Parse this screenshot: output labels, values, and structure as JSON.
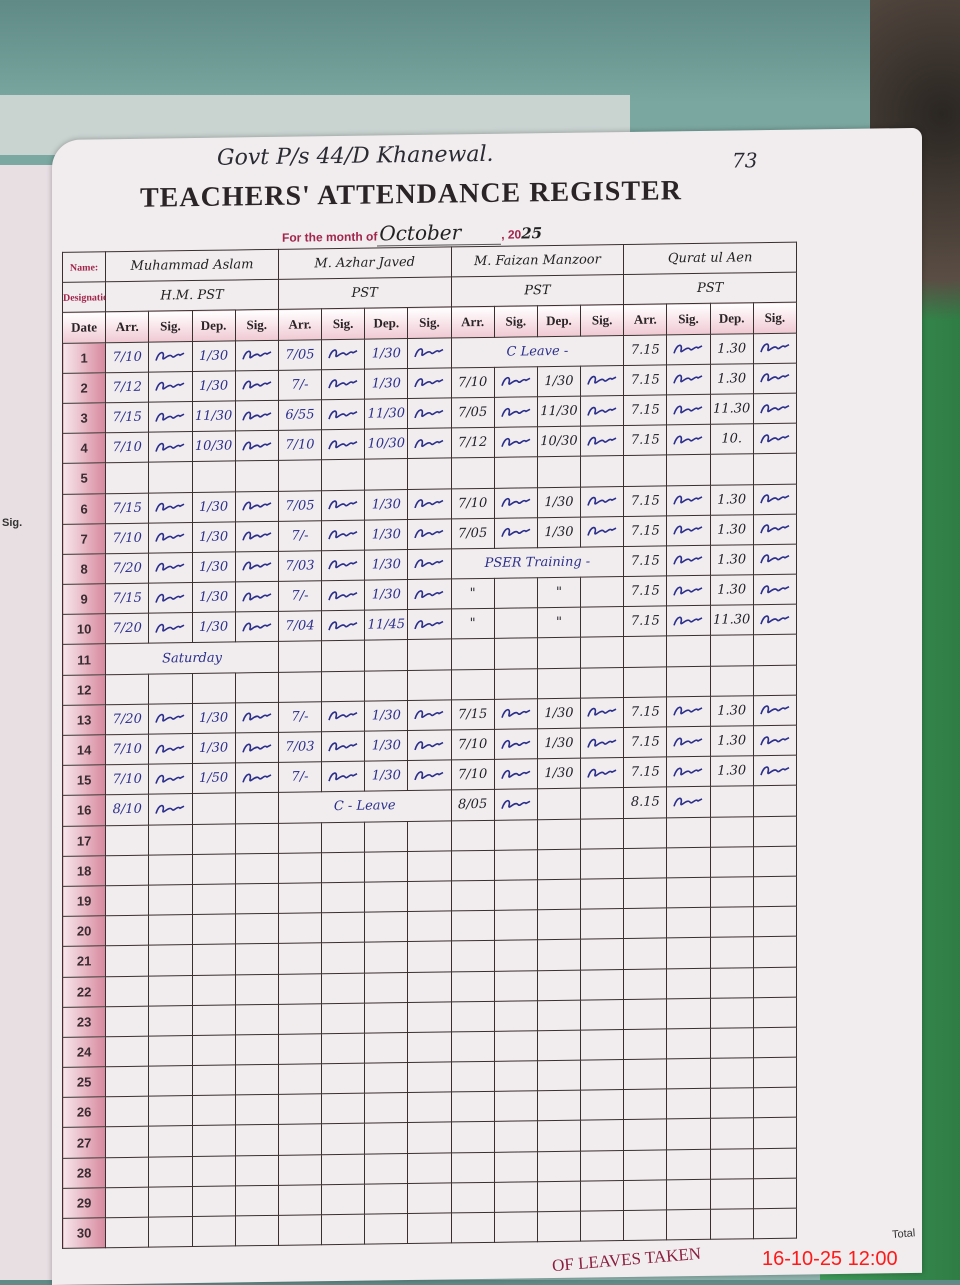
{
  "header": {
    "school": "Govt P/s 44/D Khanewal.",
    "page_number": "73",
    "title": "TEACHERS' ATTENDANCE REGISTER",
    "month_label": "For the month of",
    "month_value": "October",
    "year_prefix": ", 20",
    "year_value": "25"
  },
  "labels": {
    "name": "Name:",
    "designation": "Designation:",
    "date": "Date",
    "arr": "Arr.",
    "sig": "Sig.",
    "dep": "Dep."
  },
  "colors": {
    "accent": "#b2304f",
    "ink_blue": "#2b2f8a",
    "stamp": "#ff1a1a"
  },
  "teachers": [
    {
      "name": "Muhammad Aslam",
      "designation": "H.M. PST",
      "ink": "blue",
      "rows": [
        [
          "7/10",
          true,
          "1/30",
          true
        ],
        [
          "7/12",
          true,
          "1/30",
          true
        ],
        [
          "7/15",
          true,
          "11/30",
          true
        ],
        [
          "7/10",
          true,
          "10/30",
          true
        ],
        null,
        [
          "7/15",
          true,
          "1/30",
          true
        ],
        [
          "7/10",
          true,
          "1/30",
          true
        ],
        [
          "7/20",
          true,
          "1/30",
          true
        ],
        [
          "7/15",
          true,
          "1/30",
          true
        ],
        [
          "7/20",
          true,
          "1/30",
          true
        ],
        "Saturday",
        null,
        [
          "7/20",
          true,
          "1/30",
          true
        ],
        [
          "7/10",
          true,
          "1/30",
          true
        ],
        [
          "7/10",
          true,
          "1/50",
          true
        ],
        [
          "8/10",
          true,
          "",
          false
        ],
        null,
        null,
        null,
        null,
        null,
        null,
        null,
        null,
        null,
        null,
        null,
        null,
        null,
        null
      ]
    },
    {
      "name": "M. Azhar Javed",
      "designation": "PST",
      "ink": "blue",
      "rows": [
        [
          "7/05",
          true,
          "1/30",
          true
        ],
        [
          "7/-",
          true,
          "1/30",
          true
        ],
        [
          "6/55",
          true,
          "11/30",
          true
        ],
        [
          "7/10",
          true,
          "10/30",
          true
        ],
        null,
        [
          "7/05",
          true,
          "1/30",
          true
        ],
        [
          "7/-",
          true,
          "1/30",
          true
        ],
        [
          "7/03",
          true,
          "1/30",
          true
        ],
        [
          "7/-",
          true,
          "1/30",
          true
        ],
        [
          "7/04",
          true,
          "11/45",
          true
        ],
        null,
        null,
        [
          "7/-",
          true,
          "1/30",
          true
        ],
        [
          "7/03",
          true,
          "1/30",
          true
        ],
        [
          "7/-",
          true,
          "1/30",
          true
        ],
        "C - Leave",
        null,
        null,
        null,
        null,
        null,
        null,
        null,
        null,
        null,
        null,
        null,
        null,
        null,
        null
      ]
    },
    {
      "name": "M. Faizan Manzoor",
      "designation": "PST",
      "ink": "black",
      "rows": [
        "C Leave -",
        [
          "7/10",
          true,
          "1/30",
          true
        ],
        [
          "7/05",
          true,
          "11/30",
          true
        ],
        [
          "7/12",
          true,
          "10/30",
          true
        ],
        null,
        [
          "7/10",
          true,
          "1/30",
          true
        ],
        [
          "7/05",
          true,
          "1/30",
          true
        ],
        "PSER Training -",
        [
          "\"",
          false,
          "\"",
          false
        ],
        [
          "\"",
          false,
          "\"",
          false
        ],
        null,
        null,
        [
          "7/15",
          true,
          "1/30",
          true
        ],
        [
          "7/10",
          true,
          "1/30",
          true
        ],
        [
          "7/10",
          true,
          "1/30",
          true
        ],
        [
          "8/05",
          true,
          "",
          false
        ],
        null,
        null,
        null,
        null,
        null,
        null,
        null,
        null,
        null,
        null,
        null,
        null,
        null,
        null
      ]
    },
    {
      "name": "Qurat ul Aen",
      "designation": "PST",
      "ink": "black",
      "rows": [
        [
          "7.15",
          true,
          "1.30",
          true
        ],
        [
          "7.15",
          true,
          "1.30",
          true
        ],
        [
          "7.15",
          true,
          "11.30",
          true
        ],
        [
          "7.15",
          true,
          "10.",
          true
        ],
        null,
        [
          "7.15",
          true,
          "1.30",
          true
        ],
        [
          "7.15",
          true,
          "1.30",
          true
        ],
        [
          "7.15",
          true,
          "1.30",
          true
        ],
        [
          "7.15",
          true,
          "1.30",
          true
        ],
        [
          "7.15",
          true,
          "11.30",
          true
        ],
        null,
        null,
        [
          "7.15",
          true,
          "1.30",
          true
        ],
        [
          "7.15",
          true,
          "1.30",
          true
        ],
        [
          "7.15",
          true,
          "1.30",
          true
        ],
        [
          "8.15",
          true,
          "",
          false
        ],
        null,
        null,
        null,
        null,
        null,
        null,
        null,
        null,
        null,
        null,
        null,
        null,
        null,
        null
      ]
    }
  ],
  "footer": {
    "leaves_taken": "OF LEAVES TAKEN",
    "total": "Total"
  },
  "timestamp": "16-10-25 12:00"
}
